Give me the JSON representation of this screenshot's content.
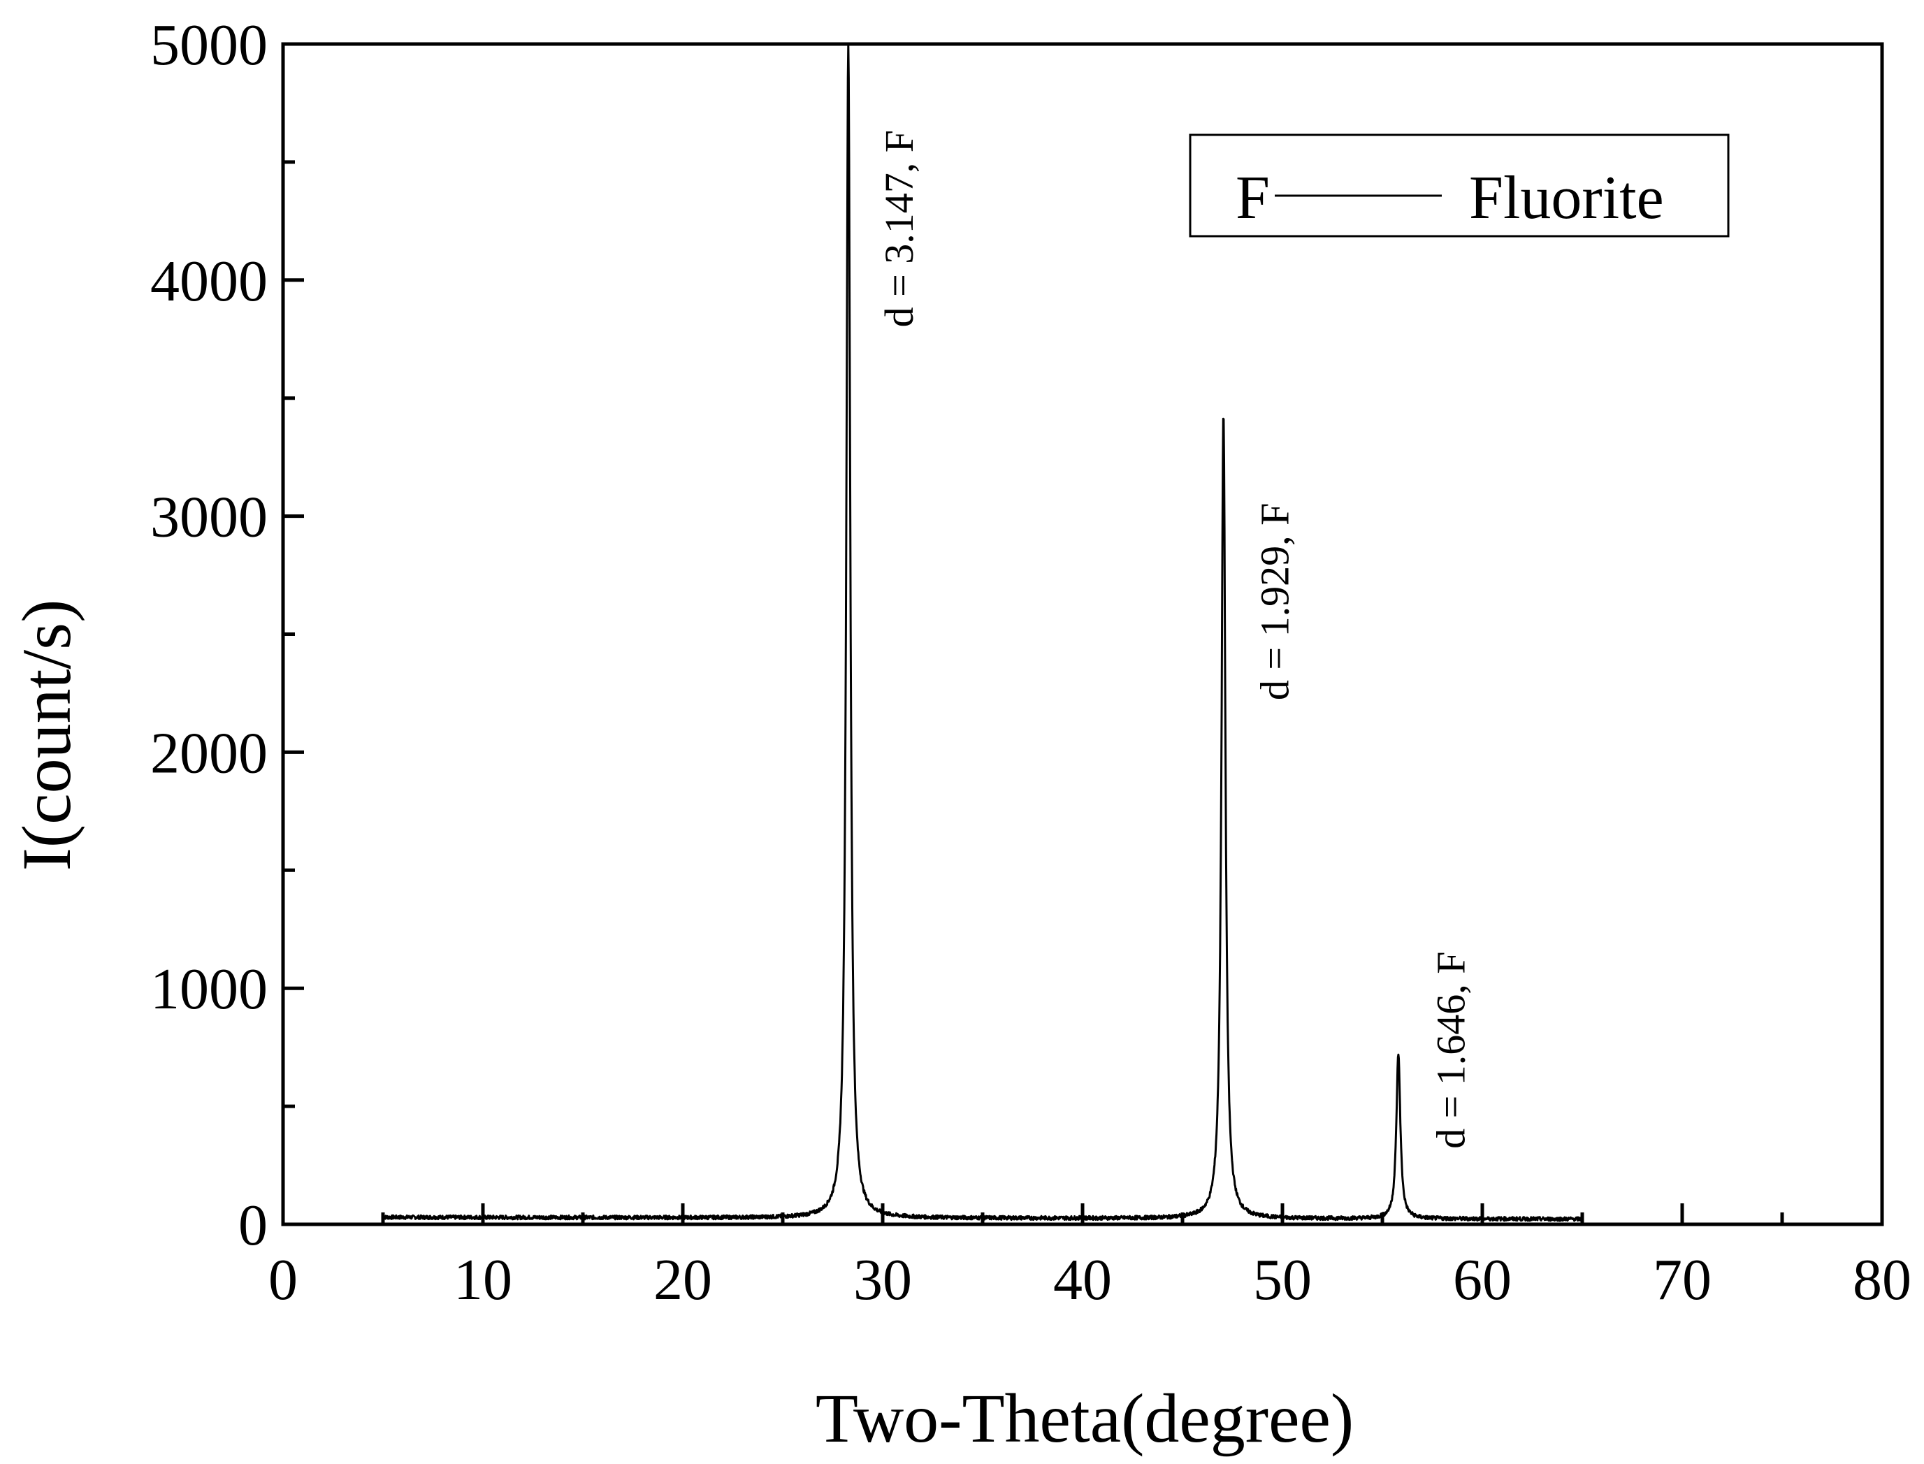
{
  "chart_data": {
    "type": "line",
    "xlabel": "Two-Theta(degree)",
    "ylabel": "I(count/s)",
    "xlim": [
      0,
      80
    ],
    "ylim": [
      0,
      5000
    ],
    "xticks": [
      "0",
      "10",
      "20",
      "30",
      "40",
      "50",
      "60",
      "70",
      "80"
    ],
    "yticks": [
      "0",
      "1000",
      "2000",
      "3000",
      "4000",
      "5000"
    ],
    "grid": false,
    "legend": {
      "position": "top-right",
      "symbol": "F",
      "label": "Fluorite"
    },
    "series": [
      {
        "baseline": 30,
        "x_start": 5,
        "x_end": 65,
        "peaks": [
          {
            "x": 28.28,
            "y": 5000
          },
          {
            "x": 47.05,
            "y": 3440
          },
          {
            "x": 55.8,
            "y": 730
          }
        ]
      }
    ],
    "annotations": [
      {
        "text": "d = 3.147, F",
        "x": 31.5,
        "y": 3800
      },
      {
        "text": "d = 1.929, F",
        "x": 50.3,
        "y": 2220
      },
      {
        "text": "d = 1.646, F",
        "x": 59.1,
        "y": 320
      }
    ]
  }
}
